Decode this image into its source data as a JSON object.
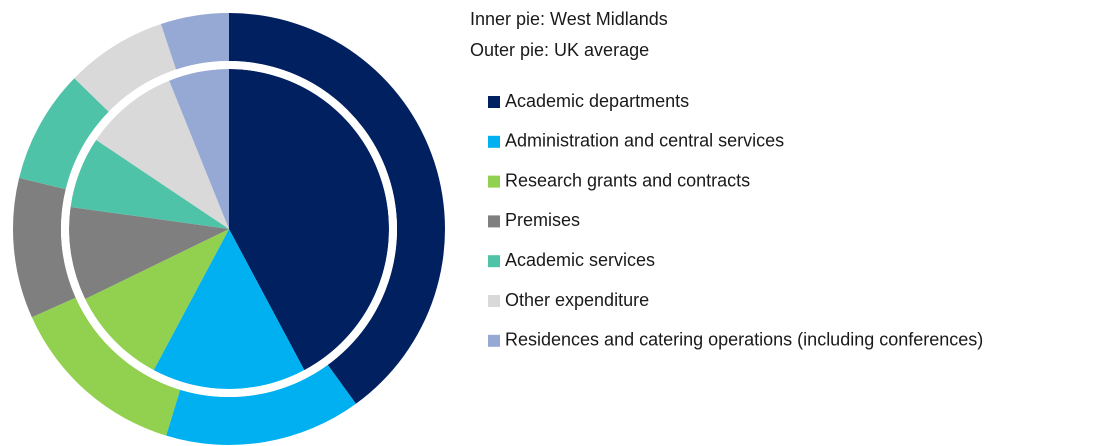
{
  "chart_data": {
    "type": "pie",
    "categories": [
      "Academic departments",
      "Administration and central services",
      "Research grants and contracts",
      "Premises",
      "Academic services",
      "Other expenditure",
      "Residences and catering operations (including conferences)"
    ],
    "colors": [
      "#002060",
      "#00b0f0",
      "#92d050",
      "#7f7f7f",
      "#4fc3a7",
      "#d9d9d9",
      "#95a9d4"
    ],
    "series": [
      {
        "name": "Inner pie: West Midlands",
        "values": [
          42.2,
          15.6,
          10,
          9.4,
          7.2,
          9.5,
          6.1
        ]
      },
      {
        "name": "Outer pie: UK average",
        "values": [
          40,
          14.7,
          13.6,
          10.5,
          8.5,
          7.6,
          5.1
        ]
      }
    ]
  }
}
